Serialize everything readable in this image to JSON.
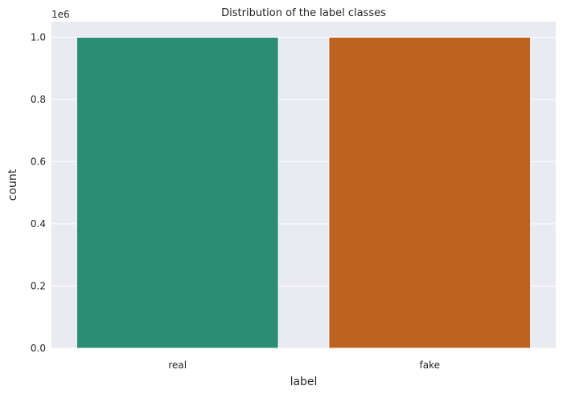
{
  "chart_data": {
    "type": "bar",
    "title": "Distribution of the label classes",
    "xlabel": "label",
    "ylabel": "count",
    "offset_label": "1e6",
    "categories": [
      "real",
      "fake"
    ],
    "values": [
      1000000,
      1000000
    ],
    "ylim": [
      0,
      1050000
    ],
    "yticks": [
      0,
      200000,
      400000,
      600000,
      800000,
      1000000
    ],
    "ytick_labels": [
      "0.0",
      "0.2",
      "0.4",
      "0.6",
      "0.8",
      "1.0"
    ],
    "grid": true,
    "colors": [
      "#2b8d72",
      "#bd631f"
    ],
    "background": "#eaeaf2"
  }
}
